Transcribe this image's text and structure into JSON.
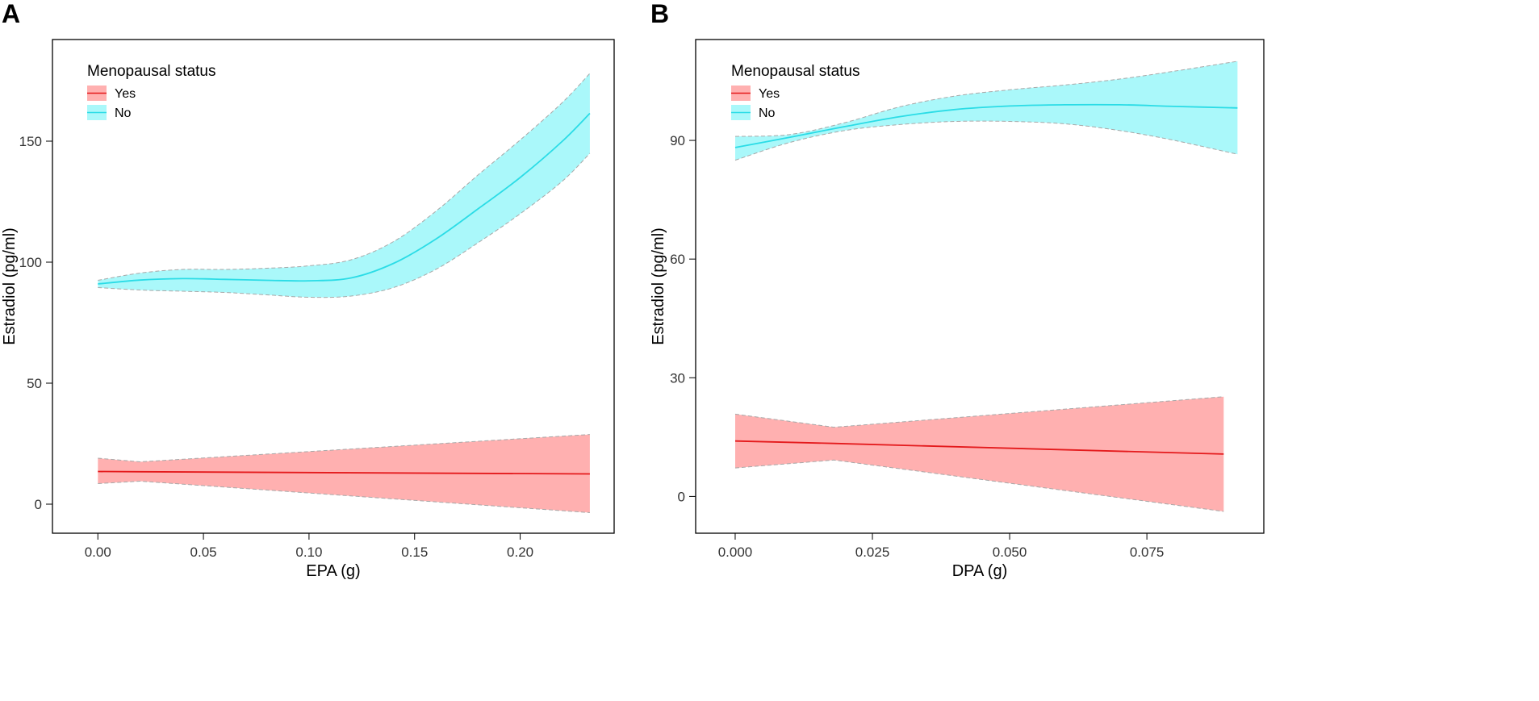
{
  "chart_data": [
    {
      "type": "line",
      "panel_label": "A",
      "xlabel": "EPA (g)",
      "ylabel": "Estradiol (pg/ml)",
      "xlim": [
        -0.0215,
        0.2445
      ],
      "ylim": [
        -12,
        192
      ],
      "xticks": [
        0.0,
        0.05,
        0.1,
        0.15,
        0.2
      ],
      "xtick_labels": [
        "0.00",
        "0.05",
        "0.10",
        "0.15",
        "0.20"
      ],
      "yticks": [
        0,
        50,
        100,
        150
      ],
      "ytick_labels": [
        "0",
        "50",
        "100",
        "150"
      ],
      "legend": {
        "title": "Menopausal status",
        "placement": "top-left"
      },
      "series": [
        {
          "name": "Yes",
          "line_color": "#e41a1c",
          "band_color": "#ffb0b0",
          "x": [
            0.0,
            0.02,
            0.233
          ],
          "y": [
            13.5,
            13.4,
            12.5
          ],
          "lower": [
            8.5,
            9.5,
            -3.5
          ],
          "upper": [
            19.0,
            17.5,
            28.8
          ]
        },
        {
          "name": "No",
          "line_color": "#2bdce6",
          "band_color": "#aaf8fa",
          "x": [
            0.0,
            0.02,
            0.04,
            0.06,
            0.08,
            0.1,
            0.12,
            0.14,
            0.16,
            0.18,
            0.2,
            0.22,
            0.233
          ],
          "y": [
            91.0,
            92.6,
            93.2,
            92.9,
            92.5,
            92.3,
            93.5,
            99.5,
            109.5,
            122.0,
            135.0,
            150.0,
            161.5
          ],
          "lower": [
            89.5,
            88.5,
            88.0,
            87.5,
            86.5,
            85.5,
            86.0,
            89.5,
            97.0,
            108.0,
            120.0,
            133.5,
            145.0
          ],
          "upper": [
            92.5,
            95.5,
            97.0,
            97.0,
            97.5,
            98.5,
            101.0,
            108.5,
            121.0,
            136.0,
            150.5,
            166.0,
            178.0
          ]
        }
      ]
    },
    {
      "type": "line",
      "panel_label": "B",
      "xlabel": "DPA (g)",
      "ylabel": "Estradiol (pg/ml)",
      "xlim": [
        -0.0072,
        0.0963
      ],
      "ylim": [
        -9.3,
        115.5
      ],
      "xticks": [
        0.0,
        0.025,
        0.05,
        0.075
      ],
      "xtick_labels": [
        "0.000",
        "0.025",
        "0.050",
        "0.075"
      ],
      "yticks": [
        0,
        30,
        60,
        90
      ],
      "ytick_labels": [
        "0",
        "30",
        "60",
        "90"
      ],
      "legend": {
        "title": "Menopausal status",
        "placement": "top-left"
      },
      "series": [
        {
          "name": "Yes",
          "line_color": "#e41a1c",
          "band_color": "#ffb0b0",
          "x": [
            0.0,
            0.018,
            0.089
          ],
          "y": [
            14.0,
            13.4,
            10.7
          ],
          "lower": [
            7.2,
            9.2,
            -3.8
          ],
          "upper": [
            20.8,
            17.5,
            25.2
          ]
        },
        {
          "name": "No",
          "line_color": "#2bdce6",
          "band_color": "#aaf8fa",
          "x": [
            0.0,
            0.01,
            0.02,
            0.03,
            0.04,
            0.05,
            0.06,
            0.07,
            0.08,
            0.0915
          ],
          "y": [
            88.2,
            90.8,
            93.5,
            96.0,
            97.8,
            98.7,
            99.0,
            99.0,
            98.6,
            98.2
          ],
          "lower": [
            85.0,
            89.5,
            92.5,
            94.0,
            94.8,
            94.8,
            94.2,
            92.5,
            90.0,
            86.5
          ],
          "upper": [
            91.0,
            91.5,
            94.5,
            98.5,
            101.2,
            102.8,
            104.0,
            105.5,
            107.5,
            110.0
          ]
        }
      ]
    }
  ]
}
